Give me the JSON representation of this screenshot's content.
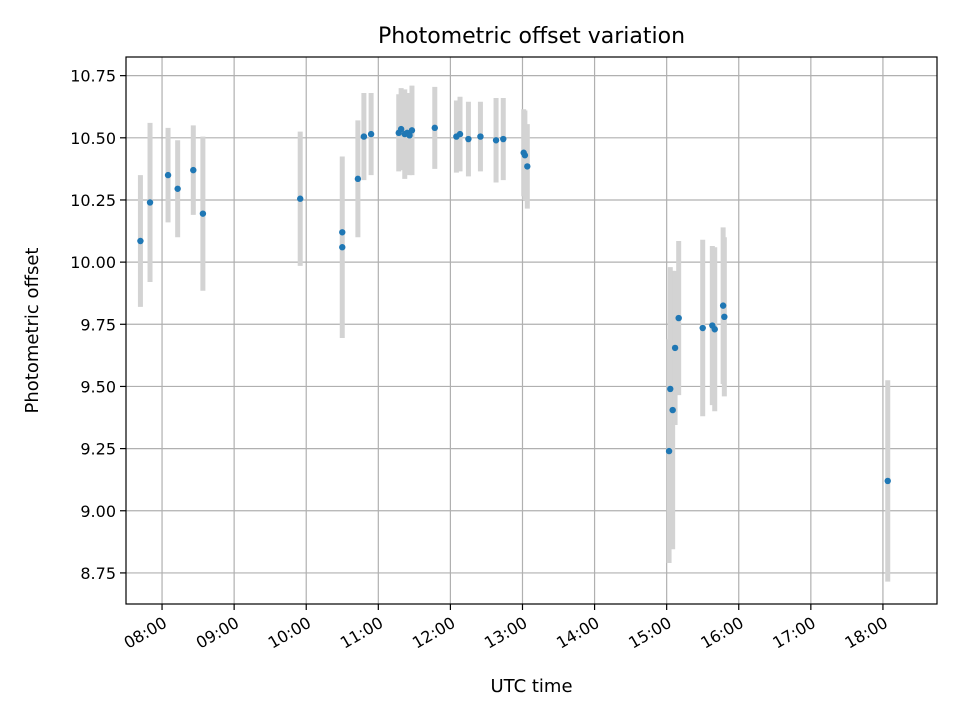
{
  "chart_data": {
    "type": "scatter",
    "title": "Photometric offset variation",
    "xlabel": "UTC time",
    "ylabel": "Photometric offset",
    "x_range": [
      "07:30",
      "18:45"
    ],
    "ylim": [
      8.625,
      10.825
    ],
    "grid": true,
    "x_ticks": [
      "08:00",
      "09:00",
      "10:00",
      "11:00",
      "12:00",
      "13:00",
      "14:00",
      "15:00",
      "16:00",
      "17:00",
      "18:00"
    ],
    "y_ticks": [
      "8.75",
      "9.00",
      "9.25",
      "9.50",
      "9.75",
      "10.00",
      "10.25",
      "10.50",
      "10.75"
    ],
    "error_bars": true,
    "points": [
      {
        "t": "07:42",
        "y": 10.085,
        "err": 0.265
      },
      {
        "t": "07:50",
        "y": 10.24,
        "err": 0.32
      },
      {
        "t": "08:05",
        "y": 10.35,
        "err": 0.19
      },
      {
        "t": "08:13",
        "y": 10.295,
        "err": 0.195
      },
      {
        "t": "08:26",
        "y": 10.37,
        "err": 0.18
      },
      {
        "t": "08:34",
        "y": 10.195,
        "err": 0.31
      },
      {
        "t": "09:55",
        "y": 10.255,
        "err": 0.27
      },
      {
        "t": "10:30",
        "y": 10.12,
        "err": 0.0
      },
      {
        "t": "10:30",
        "y": 10.06,
        "err": 0.365
      },
      {
        "t": "10:43",
        "y": 10.335,
        "err": 0.235
      },
      {
        "t": "10:48",
        "y": 10.505,
        "err": 0.175
      },
      {
        "t": "10:54",
        "y": 10.515,
        "err": 0.165
      },
      {
        "t": "11:17",
        "y": 10.52,
        "err": 0.155
      },
      {
        "t": "11:19",
        "y": 10.535,
        "err": 0.165
      },
      {
        "t": "11:22",
        "y": 10.515,
        "err": 0.18
      },
      {
        "t": "11:24",
        "y": 10.52,
        "err": 0.16
      },
      {
        "t": "11:26",
        "y": 10.51,
        "err": 0.16
      },
      {
        "t": "11:28",
        "y": 10.53,
        "err": 0.18
      },
      {
        "t": "11:47",
        "y": 10.54,
        "err": 0.165
      },
      {
        "t": "12:05",
        "y": 10.505,
        "err": 0.145
      },
      {
        "t": "12:08",
        "y": 10.515,
        "err": 0.15
      },
      {
        "t": "12:15",
        "y": 10.495,
        "err": 0.15
      },
      {
        "t": "12:25",
        "y": 10.505,
        "err": 0.14
      },
      {
        "t": "12:38",
        "y": 10.49,
        "err": 0.17
      },
      {
        "t": "12:44",
        "y": 10.495,
        "err": 0.165
      },
      {
        "t": "13:01",
        "y": 10.44,
        "err": 0.175
      },
      {
        "t": "13:02",
        "y": 10.43,
        "err": 0.18
      },
      {
        "t": "13:04",
        "y": 10.385,
        "err": 0.17
      },
      {
        "t": "15:02",
        "y": 9.24,
        "err": 0.45
      },
      {
        "t": "15:03",
        "y": 9.49,
        "err": 0.49
      },
      {
        "t": "15:05",
        "y": 9.405,
        "err": 0.56
      },
      {
        "t": "15:07",
        "y": 9.655,
        "err": 0.31
      },
      {
        "t": "15:10",
        "y": 9.775,
        "err": 0.31
      },
      {
        "t": "15:30",
        "y": 9.735,
        "err": 0.355
      },
      {
        "t": "15:38",
        "y": 9.745,
        "err": 0.32
      },
      {
        "t": "15:40",
        "y": 9.73,
        "err": 0.33
      },
      {
        "t": "15:47",
        "y": 9.825,
        "err": 0.315
      },
      {
        "t": "15:48",
        "y": 9.78,
        "err": 0.32
      },
      {
        "t": "18:04",
        "y": 9.12,
        "err": 0.405
      }
    ],
    "colors": {
      "point": "#1f77b4",
      "errorbar": "#d3d3d3",
      "grid": "#b0b0b0",
      "axes": "#000000"
    }
  }
}
